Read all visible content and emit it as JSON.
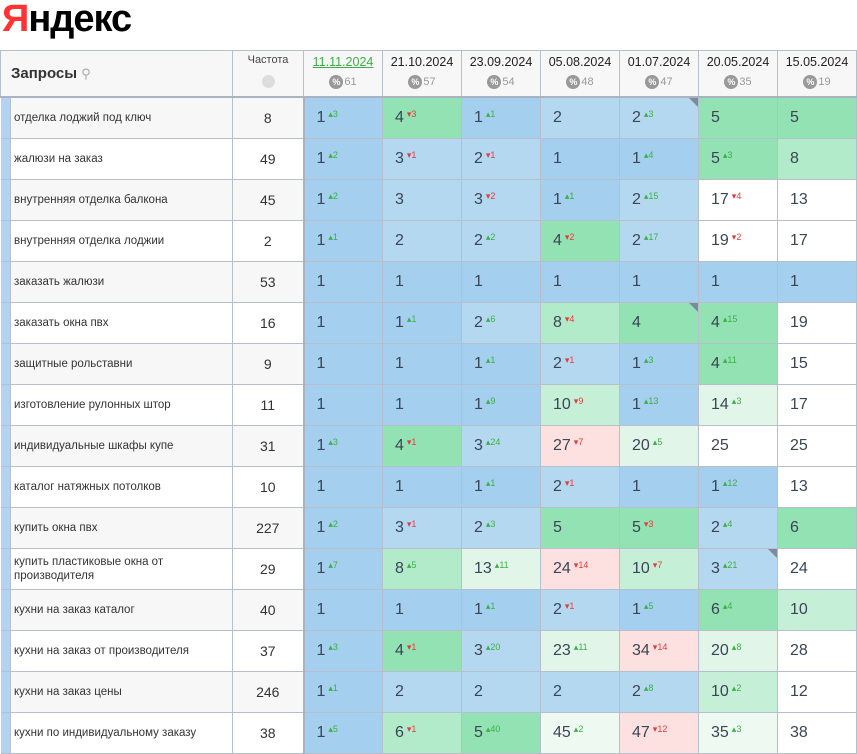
{
  "logo": {
    "first": "Я",
    "rest": "ндекс",
    "brand_color": "#ff3333"
  },
  "header": {
    "queries_label": "Запросы",
    "search_icon": "search-icon",
    "frequency_label": "Частота",
    "frequency_icon": "globe-icon",
    "percent_icon": "%"
  },
  "colors": {
    "b1": "#a4cfee",
    "b2": "#b5d8f1",
    "g1": "#93e2b4",
    "g2": "#b2ebca",
    "g3": "#c6efd8",
    "g4": "#e1f6e9",
    "g5": "#eef9f2",
    "p": "#fde0e0",
    "w": "#ffffff",
    "delta_up": "#3cb043",
    "delta_down": "#e43b3b"
  },
  "dates": [
    {
      "date": "11.11.2024",
      "pct": "61",
      "current": true
    },
    {
      "date": "21.10.2024",
      "pct": "57"
    },
    {
      "date": "23.09.2024",
      "pct": "54"
    },
    {
      "date": "05.08.2024",
      "pct": "48"
    },
    {
      "date": "01.07.2024",
      "pct": "47"
    },
    {
      "date": "20.05.2024",
      "pct": "35"
    },
    {
      "date": "15.05.2024",
      "pct": "19"
    }
  ],
  "rows": [
    {
      "query": "отделка лоджий под ключ",
      "freq": "8",
      "cells": [
        [
          1,
          3,
          "b1"
        ],
        [
          4,
          -3,
          "g1"
        ],
        [
          1,
          1,
          "b1"
        ],
        [
          2,
          0,
          "b2"
        ],
        [
          2,
          3,
          "b2",
          true
        ],
        [
          5,
          0,
          "g1"
        ],
        [
          5,
          0,
          "g1"
        ]
      ]
    },
    {
      "query": "жалюзи на заказ",
      "freq": "49",
      "cells": [
        [
          1,
          2,
          "b1"
        ],
        [
          3,
          -1,
          "b2"
        ],
        [
          2,
          -1,
          "b2"
        ],
        [
          1,
          0,
          "b1"
        ],
        [
          1,
          4,
          "b1"
        ],
        [
          5,
          3,
          "g1"
        ],
        [
          8,
          0,
          "g2"
        ]
      ]
    },
    {
      "query": "внутренняя отделка балкона",
      "freq": "45",
      "cells": [
        [
          1,
          2,
          "b1"
        ],
        [
          3,
          0,
          "b2"
        ],
        [
          3,
          -2,
          "b2"
        ],
        [
          1,
          1,
          "b1"
        ],
        [
          2,
          15,
          "b2"
        ],
        [
          17,
          -4,
          "w"
        ],
        [
          13,
          0,
          "w"
        ]
      ]
    },
    {
      "query": "внутренняя отделка лоджии",
      "freq": "2",
      "cells": [
        [
          1,
          1,
          "b1"
        ],
        [
          2,
          0,
          "b2"
        ],
        [
          2,
          2,
          "b2"
        ],
        [
          4,
          -2,
          "g1"
        ],
        [
          2,
          17,
          "b2"
        ],
        [
          19,
          -2,
          "w"
        ],
        [
          17,
          0,
          "w"
        ]
      ]
    },
    {
      "query": "заказать жалюзи",
      "freq": "53",
      "cells": [
        [
          1,
          0,
          "b1"
        ],
        [
          1,
          0,
          "b1"
        ],
        [
          1,
          0,
          "b1"
        ],
        [
          1,
          0,
          "b1"
        ],
        [
          1,
          0,
          "b1"
        ],
        [
          1,
          0,
          "b1"
        ],
        [
          1,
          0,
          "b1"
        ]
      ]
    },
    {
      "query": "заказать окна пвх",
      "freq": "16",
      "cells": [
        [
          1,
          0,
          "b1"
        ],
        [
          1,
          1,
          "b1"
        ],
        [
          2,
          6,
          "b2"
        ],
        [
          8,
          -4,
          "g2"
        ],
        [
          4,
          0,
          "g1",
          true
        ],
        [
          4,
          15,
          "g1"
        ],
        [
          19,
          0,
          "w"
        ]
      ]
    },
    {
      "query": "защитные рольставни",
      "freq": "9",
      "cells": [
        [
          1,
          0,
          "b1"
        ],
        [
          1,
          0,
          "b1"
        ],
        [
          1,
          1,
          "b1"
        ],
        [
          2,
          -1,
          "b2"
        ],
        [
          1,
          3,
          "b1"
        ],
        [
          4,
          11,
          "g1"
        ],
        [
          15,
          0,
          "w"
        ]
      ]
    },
    {
      "query": "изготовление рулонных штор",
      "freq": "11",
      "cells": [
        [
          1,
          0,
          "b1"
        ],
        [
          1,
          0,
          "b1"
        ],
        [
          1,
          9,
          "b1"
        ],
        [
          10,
          -9,
          "g3"
        ],
        [
          1,
          13,
          "b1"
        ],
        [
          14,
          3,
          "g4"
        ],
        [
          17,
          0,
          "w"
        ]
      ]
    },
    {
      "query": "индивидуальные шкафы купе",
      "freq": "31",
      "cells": [
        [
          1,
          3,
          "b1"
        ],
        [
          4,
          -1,
          "g1"
        ],
        [
          3,
          24,
          "b2"
        ],
        [
          27,
          -7,
          "p"
        ],
        [
          20,
          5,
          "g4"
        ],
        [
          25,
          0,
          "w"
        ],
        [
          25,
          0,
          "w"
        ]
      ]
    },
    {
      "query": "каталог натяжных потолков",
      "freq": "10",
      "cells": [
        [
          1,
          0,
          "b1"
        ],
        [
          1,
          0,
          "b1"
        ],
        [
          1,
          1,
          "b1"
        ],
        [
          2,
          -1,
          "b2"
        ],
        [
          1,
          0,
          "b1"
        ],
        [
          1,
          12,
          "b1"
        ],
        [
          13,
          0,
          "w"
        ]
      ]
    },
    {
      "query": "купить окна пвх",
      "freq": "227",
      "cells": [
        [
          1,
          2,
          "b1"
        ],
        [
          3,
          -1,
          "b2"
        ],
        [
          2,
          3,
          "b2"
        ],
        [
          5,
          0,
          "g1"
        ],
        [
          5,
          -3,
          "g1"
        ],
        [
          2,
          4,
          "b2"
        ],
        [
          6,
          0,
          "g1"
        ]
      ]
    },
    {
      "query": "купить пластиковые окна от производителя",
      "freq": "29",
      "cells": [
        [
          1,
          7,
          "b1"
        ],
        [
          8,
          5,
          "g2"
        ],
        [
          13,
          11,
          "g4"
        ],
        [
          24,
          -14,
          "p"
        ],
        [
          10,
          -7,
          "g3"
        ],
        [
          3,
          21,
          "b2",
          true
        ],
        [
          24,
          0,
          "w"
        ]
      ]
    },
    {
      "query": "кухни на заказ каталог",
      "freq": "40",
      "cells": [
        [
          1,
          0,
          "b1"
        ],
        [
          1,
          0,
          "b1"
        ],
        [
          1,
          1,
          "b1"
        ],
        [
          2,
          -1,
          "b2"
        ],
        [
          1,
          5,
          "b1"
        ],
        [
          6,
          4,
          "g1"
        ],
        [
          10,
          0,
          "g3"
        ]
      ]
    },
    {
      "query": "кухни на заказ от производителя",
      "freq": "37",
      "cells": [
        [
          1,
          3,
          "b1"
        ],
        [
          4,
          -1,
          "g1"
        ],
        [
          3,
          20,
          "b2"
        ],
        [
          23,
          11,
          "g4"
        ],
        [
          34,
          -14,
          "p"
        ],
        [
          20,
          8,
          "g4"
        ],
        [
          28,
          0,
          "w"
        ]
      ]
    },
    {
      "query": "кухни на заказ цены",
      "freq": "246",
      "cells": [
        [
          1,
          1,
          "b1"
        ],
        [
          2,
          0,
          "b2"
        ],
        [
          2,
          0,
          "b2"
        ],
        [
          2,
          0,
          "b2"
        ],
        [
          2,
          8,
          "b2"
        ],
        [
          10,
          2,
          "g3"
        ],
        [
          12,
          0,
          "w"
        ]
      ]
    },
    {
      "query": "кухни по индивидуальному заказу",
      "freq": "38",
      "cells": [
        [
          1,
          5,
          "b1"
        ],
        [
          6,
          -1,
          "g2"
        ],
        [
          5,
          40,
          "g1"
        ],
        [
          45,
          2,
          "g5"
        ],
        [
          47,
          -12,
          "p"
        ],
        [
          35,
          3,
          "g5"
        ],
        [
          38,
          0,
          "w"
        ]
      ]
    }
  ]
}
